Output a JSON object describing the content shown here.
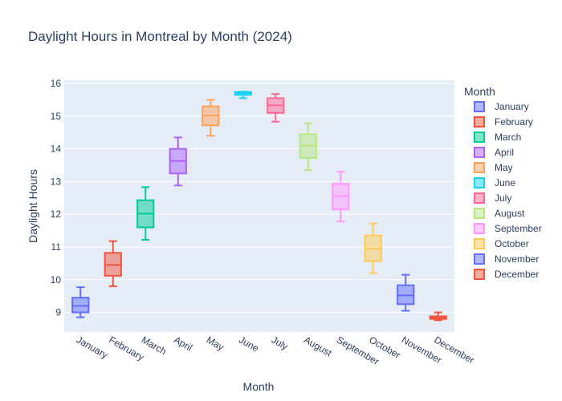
{
  "chart_data": {
    "type": "box",
    "title": "Daylight Hours in Montreal by Month (2024)",
    "xlabel": "Month",
    "ylabel": "Daylight Hours",
    "ylim": [
      8.4,
      16.1
    ],
    "yticks": [
      9,
      10,
      11,
      12,
      13,
      14,
      15,
      16
    ],
    "grid": true,
    "legend": {
      "title": "Month",
      "placement": "right"
    },
    "categories": [
      "January",
      "February",
      "March",
      "April",
      "May",
      "June",
      "July",
      "August",
      "September",
      "October",
      "November",
      "December"
    ],
    "series": [
      {
        "name": "January",
        "color": "#636efa",
        "min": 8.85,
        "q1": 9.0,
        "median": 9.2,
        "q3": 9.45,
        "max": 9.77
      },
      {
        "name": "February",
        "color": "#ef553b",
        "min": 9.8,
        "q1": 10.12,
        "median": 10.45,
        "q3": 10.82,
        "max": 11.18
      },
      {
        "name": "March",
        "color": "#00cc96",
        "min": 11.22,
        "q1": 11.6,
        "median": 12.02,
        "q3": 12.43,
        "max": 12.83
      },
      {
        "name": "April",
        "color": "#ab63fa",
        "min": 12.88,
        "q1": 13.25,
        "median": 13.63,
        "q3": 14.0,
        "max": 14.35
      },
      {
        "name": "May",
        "color": "#ffa15a",
        "min": 14.4,
        "q1": 14.72,
        "median": 15.02,
        "q3": 15.3,
        "max": 15.5
      },
      {
        "name": "June",
        "color": "#19d3f3",
        "min": 15.55,
        "q1": 15.65,
        "median": 15.7,
        "q3": 15.74,
        "max": 15.75
      },
      {
        "name": "July",
        "color": "#ff6692",
        "min": 14.83,
        "q1": 15.1,
        "median": 15.33,
        "q3": 15.55,
        "max": 15.68
      },
      {
        "name": "August",
        "color": "#b6e880",
        "min": 13.35,
        "q1": 13.72,
        "median": 14.1,
        "q3": 14.45,
        "max": 14.78
      },
      {
        "name": "September",
        "color": "#ff97ff",
        "min": 11.78,
        "q1": 12.15,
        "median": 12.55,
        "q3": 12.93,
        "max": 13.3
      },
      {
        "name": "October",
        "color": "#fecb52",
        "min": 10.2,
        "q1": 10.57,
        "median": 10.95,
        "q3": 11.35,
        "max": 11.72
      },
      {
        "name": "November",
        "color": "#636efa",
        "min": 9.05,
        "q1": 9.25,
        "median": 9.52,
        "q3": 9.83,
        "max": 10.15
      },
      {
        "name": "December",
        "color": "#ef553b",
        "min": 8.76,
        "q1": 8.8,
        "median": 8.83,
        "q3": 8.88,
        "max": 9.0
      }
    ]
  }
}
